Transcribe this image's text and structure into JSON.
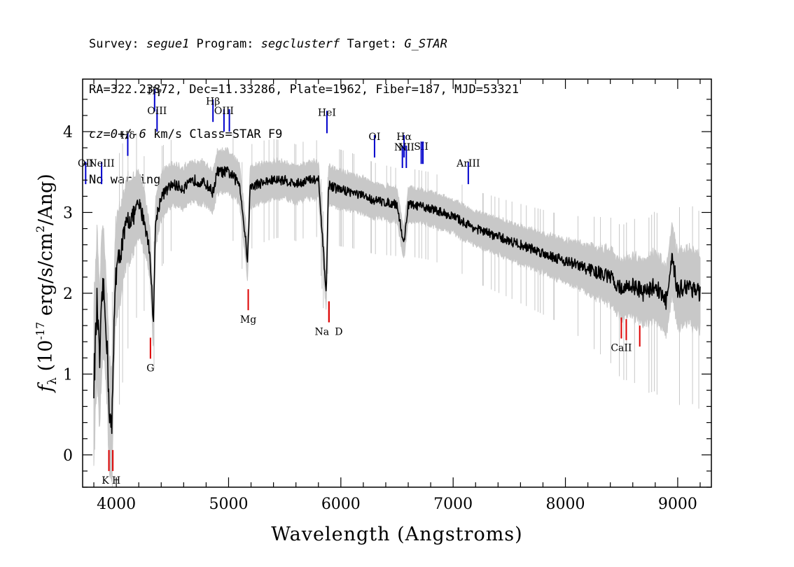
{
  "header": {
    "line1": {
      "survey_label": "Survey: ",
      "survey": "segue1",
      "program_label": " Program: ",
      "program": "segclusterf",
      "target_label": " Target: ",
      "target": "G_STAR"
    },
    "line2": "RA=322.23872, Dec=11.33286, Plate=1962, Fiber=187, MJD=53321",
    "line3": {
      "cz_label": "cz",
      "cz_value": "=0+/-6",
      "cz_rest": " km/s Class=STAR F9"
    },
    "line4": "No warnings."
  },
  "chart_data": {
    "type": "line",
    "xlabel": "Wavelength (Angstroms)",
    "ylabel": "f_λ (10^-17 erg/s/cm^2/Ang)",
    "xlim": [
      3700,
      9300
    ],
    "ylim": [
      -0.4,
      4.65
    ],
    "x_ticks": [
      4000,
      5000,
      6000,
      7000,
      8000,
      9000
    ],
    "y_ticks": [
      0,
      1,
      2,
      3,
      4
    ],
    "colors": {
      "flux": "#000000",
      "error_band": "#c8c8c8",
      "emission": "#0000cc",
      "absorption": "#dd0000",
      "emission_label_text": "#000000"
    },
    "series": [
      {
        "name": "flux",
        "x": [
          3800,
          3830,
          3850,
          3880,
          3910,
          3940,
          3960,
          3990,
          4050,
          4100,
          4150,
          4200,
          4250,
          4300,
          4330,
          4350,
          4400,
          4500,
          4600,
          4700,
          4800,
          4860,
          4900,
          5000,
          5100,
          5170,
          5190,
          5250,
          5400,
          5500,
          5600,
          5700,
          5800,
          5870,
          5890,
          5950,
          6100,
          6300,
          6500,
          6560,
          6600,
          6800,
          7000,
          7200,
          7400,
          7600,
          7800,
          8000,
          8200,
          8400,
          8500,
          8600,
          8700,
          8800,
          8900,
          8950,
          9000,
          9100,
          9200
        ],
        "y": [
          0.9,
          1.9,
          1.1,
          2.1,
          1.6,
          0.5,
          0.3,
          2.2,
          2.6,
          2.9,
          2.95,
          3.1,
          2.9,
          2.5,
          1.6,
          2.9,
          3.2,
          3.35,
          3.3,
          3.4,
          3.35,
          3.25,
          3.5,
          3.5,
          3.35,
          2.4,
          3.3,
          3.35,
          3.4,
          3.4,
          3.35,
          3.4,
          3.4,
          2.0,
          3.35,
          3.3,
          3.25,
          3.15,
          3.1,
          2.6,
          3.1,
          3.05,
          2.95,
          2.8,
          2.7,
          2.6,
          2.5,
          2.4,
          2.3,
          2.2,
          2.05,
          2.1,
          2.0,
          2.1,
          1.9,
          2.4,
          2.05,
          2.1,
          2.0
        ]
      },
      {
        "name": "error_band",
        "x": [
          3800,
          4000,
          4300,
          4500,
          5000,
          5500,
          6000,
          6500,
          7000,
          7500,
          8000,
          8500,
          9000,
          9200
        ],
        "half_width": [
          0.9,
          0.6,
          0.3,
          0.25,
          0.25,
          0.22,
          0.22,
          0.2,
          0.2,
          0.22,
          0.25,
          0.35,
          0.45,
          0.45
        ]
      }
    ],
    "emission_lines": [
      {
        "label": "OII",
        "x": 3727,
        "y": 3.35,
        "label_y": 3.6
      },
      {
        "label": "NeIII",
        "x": 3869,
        "y": 3.35,
        "label_y": 3.6
      },
      {
        "label": "Hδ",
        "x": 4102,
        "y": 3.7,
        "label_y": 3.95
      },
      {
        "label": "Hγ",
        "x": 4341,
        "y": 4.25,
        "label_y": 4.5
      },
      {
        "label": "OIII",
        "x": 4363,
        "y": 4.0,
        "label_y": 4.25
      },
      {
        "label": "Hβ",
        "x": 4861,
        "y": 4.12,
        "label_y": 4.37
      },
      {
        "label": "OIII",
        "x": 4959,
        "y": 4.0,
        "label_y": 4.25
      },
      {
        "label": "OIII",
        "x": 5007,
        "y": 4.0,
        "label_y": 4.25
      },
      {
        "label": "HeI",
        "x": 5876,
        "y": 3.98,
        "label_y": 4.23
      },
      {
        "label": "OI",
        "x": 6300,
        "y": 3.68,
        "label_y": 3.93
      },
      {
        "label": "NII",
        "x": 6548,
        "y": 3.55,
        "label_y": 3.8
      },
      {
        "label": "Hα",
        "x": 6563,
        "y": 3.68,
        "label_y": 3.93
      },
      {
        "label": "NII",
        "x": 6583,
        "y": 3.55,
        "label_y": 3.8
      },
      {
        "label": "SII",
        "x": 6716,
        "y": 3.6,
        "label_y": 3.81
      },
      {
        "label": "SII",
        "x": 6731,
        "y": 3.6,
        "label_y": 3.81
      },
      {
        "label": "ArIII",
        "x": 7135,
        "y": 3.35,
        "label_y": 3.6
      }
    ],
    "absorption_lines": [
      {
        "label": "K",
        "x": 3934,
        "y": 0.06,
        "label_y": -0.32
      },
      {
        "label": "H",
        "x": 3969,
        "y": 0.06,
        "label_y": -0.32
      },
      {
        "label": "G",
        "x": 4304,
        "y": 1.45,
        "label_y": 1.07
      },
      {
        "label": "Mg",
        "x": 5175,
        "y": 2.05,
        "label_y": 1.67
      },
      {
        "label": "Na",
        "x": 5894,
        "y": 1.9,
        "label_y": 1.52
      },
      {
        "label": "D",
        "x": 5894,
        "y": 1.9,
        "label_y": 1.52
      },
      {
        "label": "CaII",
        "x": 8498,
        "y": 1.7,
        "label_y": 1.32
      },
      {
        "label": "CaII",
        "x": 8542,
        "y": 1.68,
        "label_y": 1.32
      },
      {
        "label": "CaII",
        "x": 8662,
        "y": 1.6,
        "label_y": 1.32
      }
    ]
  }
}
